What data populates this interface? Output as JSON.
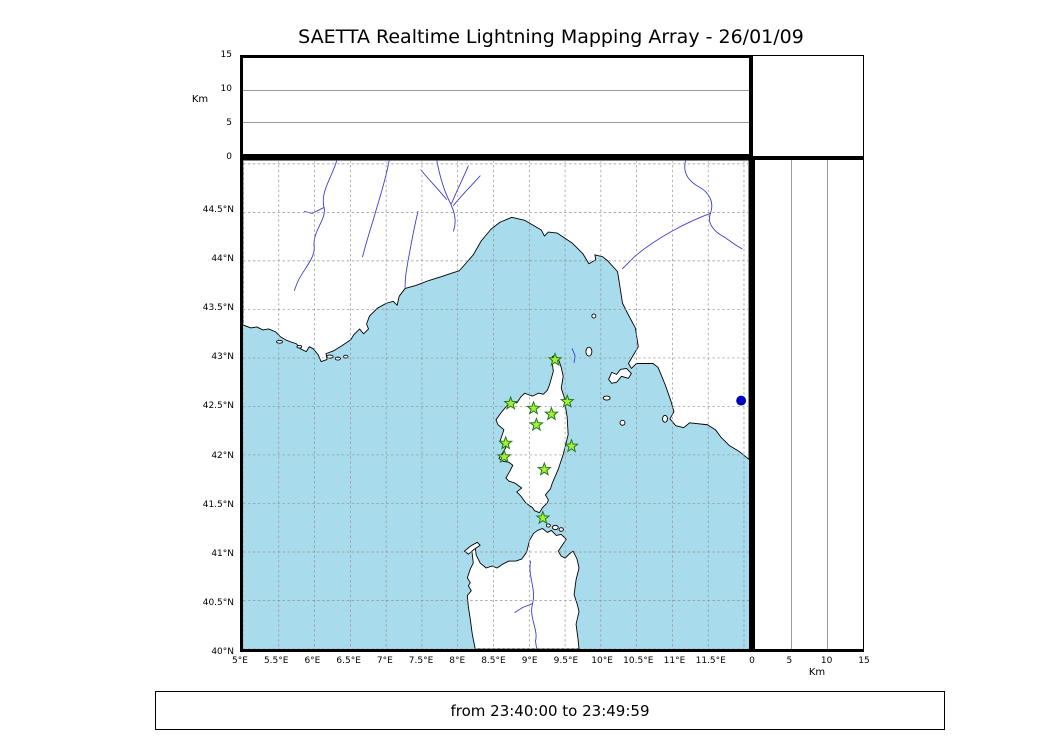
{
  "title": "SAETTA Realtime Lightning Mapping Array - 26/01/09",
  "caption": "from 23:40:00 to 23:49:59",
  "alt_axis": {
    "label": "Km",
    "max": 15,
    "ticks": [
      0,
      5,
      10,
      15
    ]
  },
  "map": {
    "lon_range": [
      5,
      12.07
    ],
    "lat_range": [
      40,
      45.04
    ],
    "grid_step": 0.5,
    "lat_ticks": [
      {
        "v": 44.5,
        "label": "44.5°N"
      },
      {
        "v": 44,
        "label": "44°N"
      },
      {
        "v": 43.5,
        "label": "43.5°N"
      },
      {
        "v": 43,
        "label": "43°N"
      },
      {
        "v": 42.5,
        "label": "42.5°N"
      },
      {
        "v": 42,
        "label": "42°N"
      },
      {
        "v": 41.5,
        "label": "41.5°N"
      },
      {
        "v": 41,
        "label": "41°N"
      },
      {
        "v": 40.5,
        "label": "40.5°N"
      },
      {
        "v": 40,
        "label": "40°N"
      }
    ],
    "lon_ticks": [
      {
        "v": 5,
        "label": "5°E"
      },
      {
        "v": 5.5,
        "label": "5.5°E"
      },
      {
        "v": 6,
        "label": "6°E"
      },
      {
        "v": 6.5,
        "label": "6.5°E"
      },
      {
        "v": 7,
        "label": "7°E"
      },
      {
        "v": 7.5,
        "label": "7.5°E"
      },
      {
        "v": 8,
        "label": "8°E"
      },
      {
        "v": 8.5,
        "label": "8.5°E"
      },
      {
        "v": 9,
        "label": "9°E"
      },
      {
        "v": 9.5,
        "label": "9.5°E"
      },
      {
        "v": 10,
        "label": "10°E"
      },
      {
        "v": 10.5,
        "label": "10.5°E"
      },
      {
        "v": 11,
        "label": "11°E"
      },
      {
        "v": 11.5,
        "label": "11.5°E"
      }
    ],
    "stations": [
      {
        "lon": 9.36,
        "lat": 42.98
      },
      {
        "lon": 8.74,
        "lat": 42.53
      },
      {
        "lon": 9.06,
        "lat": 42.48
      },
      {
        "lon": 9.53,
        "lat": 42.55
      },
      {
        "lon": 9.31,
        "lat": 42.42
      },
      {
        "lon": 9.1,
        "lat": 42.31
      },
      {
        "lon": 8.67,
        "lat": 42.12
      },
      {
        "lon": 9.59,
        "lat": 42.09
      },
      {
        "lon": 8.65,
        "lat": 41.98
      },
      {
        "lon": 9.21,
        "lat": 41.85
      },
      {
        "lon": 9.19,
        "lat": 41.35
      }
    ],
    "event_point": {
      "lon": 11.96,
      "lat": 42.56
    }
  },
  "colors": {
    "sea": "#a8dcec",
    "land": "#ffffff",
    "coast": "#000000",
    "river": "#3c3cd0",
    "grid": "#909090",
    "station_fill": "#aaee33",
    "station_edge": "#1d7a1d",
    "event": "#0000bb"
  }
}
